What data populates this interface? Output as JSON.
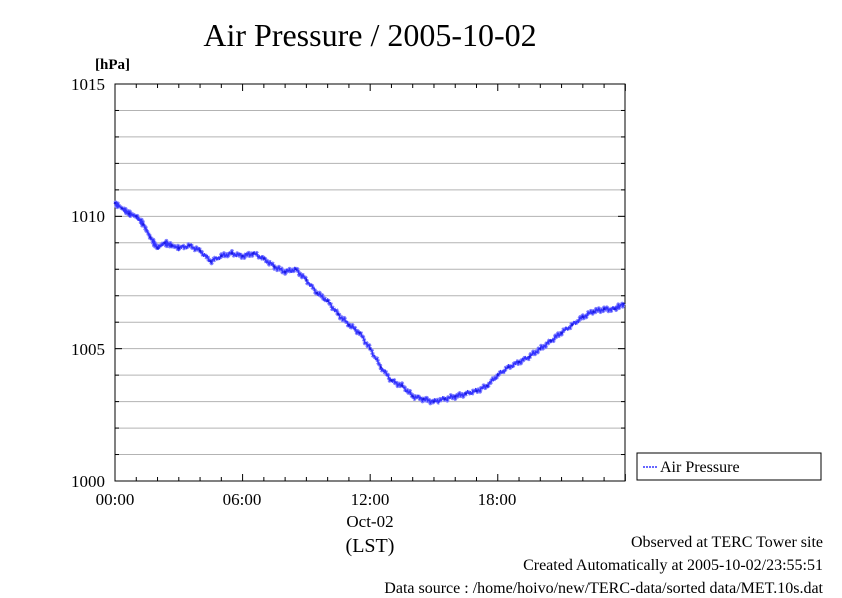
{
  "chart_data": {
    "type": "line",
    "title": "Air Pressure / 2005-10-02",
    "ylabel": "[hPa]",
    "xlabel": "(LST)",
    "date_label": "Oct-02",
    "ylim": [
      1000,
      1015
    ],
    "xlim": [
      "00:00",
      "23:59"
    ],
    "y_ticks": [
      "1000",
      "1005",
      "1010",
      "1015"
    ],
    "x_ticks": [
      "00:00",
      "06:00",
      "12:00",
      "18:00"
    ],
    "grid": true,
    "legend_position": "right",
    "series": [
      {
        "name": "Air Pressure",
        "color": "#3333ff",
        "x": [
          "00:00",
          "00:20",
          "00:40",
          "01:00",
          "01:20",
          "01:40",
          "02:00",
          "02:20",
          "02:40",
          "03:00",
          "03:30",
          "04:00",
          "04:30",
          "05:00",
          "05:30",
          "06:00",
          "06:30",
          "07:00",
          "07:30",
          "08:00",
          "08:30",
          "09:00",
          "09:30",
          "10:00",
          "10:30",
          "11:00",
          "11:30",
          "12:00",
          "12:30",
          "13:00",
          "13:30",
          "14:00",
          "14:30",
          "15:00",
          "15:30",
          "16:00",
          "16:30",
          "17:00",
          "17:30",
          "18:00",
          "18:30",
          "19:00",
          "19:30",
          "20:00",
          "20:30",
          "21:00",
          "21:30",
          "22:00",
          "22:30",
          "23:00",
          "23:30",
          "23:55"
        ],
        "values": [
          1010.5,
          1010.3,
          1010.1,
          1010.0,
          1009.7,
          1009.2,
          1008.8,
          1009.0,
          1008.9,
          1008.8,
          1008.9,
          1008.7,
          1008.3,
          1008.5,
          1008.6,
          1008.5,
          1008.6,
          1008.4,
          1008.1,
          1007.9,
          1008.0,
          1007.6,
          1007.1,
          1006.8,
          1006.3,
          1005.9,
          1005.6,
          1005.0,
          1004.3,
          1003.8,
          1003.6,
          1003.2,
          1003.1,
          1003.0,
          1003.1,
          1003.2,
          1003.3,
          1003.4,
          1003.6,
          1004.0,
          1004.3,
          1004.5,
          1004.7,
          1005.0,
          1005.3,
          1005.6,
          1005.9,
          1006.2,
          1006.4,
          1006.5,
          1006.5,
          1006.7
        ]
      }
    ]
  },
  "footer": {
    "site": "Observed at TERC Tower site",
    "created": "Created Automatically at 2005-10-02/23:55:51",
    "source": "Data source : /home/hoivo/new/TERC-data/sorted  data/MET.10s.dat"
  }
}
